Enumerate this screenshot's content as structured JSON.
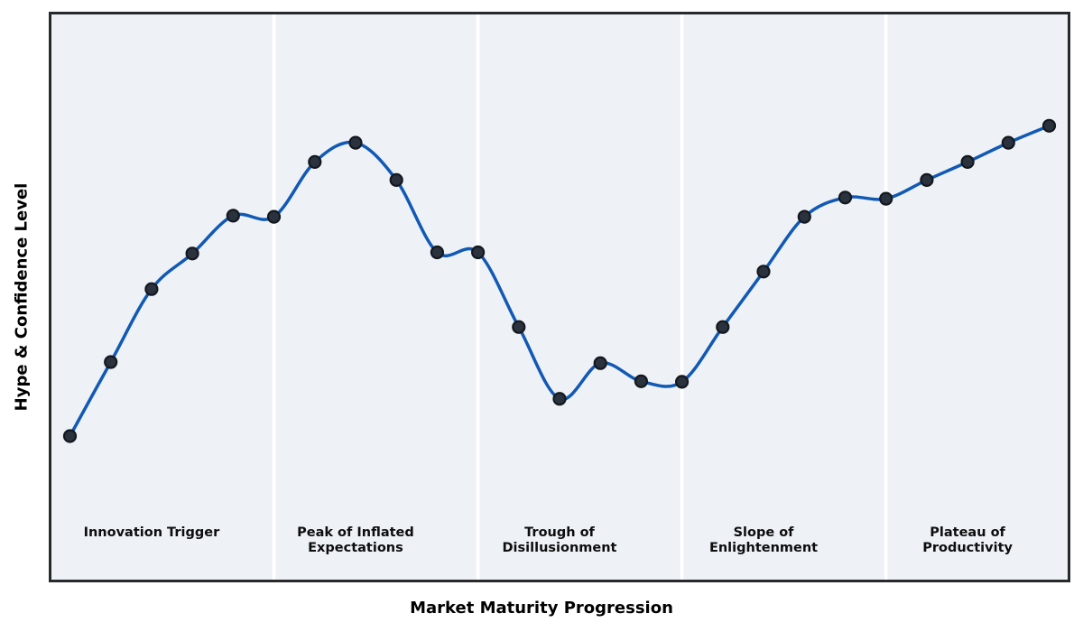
{
  "chart_data": {
    "type": "line",
    "title": "",
    "xlabel": "Market Maturity Progression",
    "ylabel": "Hype & Confidence Level",
    "x": [
      0,
      1,
      2,
      3,
      4,
      5,
      6,
      7,
      8,
      9,
      10,
      11,
      12,
      13,
      14,
      15,
      16,
      17,
      18,
      19,
      20,
      21,
      22,
      23,
      24
    ],
    "series": [
      {
        "name": "hype-confidence",
        "values": [
          25.4,
          38.5,
          51.4,
          57.7,
          64.4,
          64.2,
          73.9,
          77.3,
          70.7,
          57.9,
          57.9,
          44.7,
          32.0,
          38.3,
          35.1,
          35.0,
          44.7,
          54.5,
          64.2,
          67.6,
          67.4,
          70.7,
          73.9,
          77.3,
          80.3
        ],
        "smooth": true,
        "line_color": "#1159b4",
        "line_width": 3.5,
        "marker": "circle",
        "marker_fill": "#2a323e",
        "marker_edge": "#14181e"
      }
    ],
    "ylim": [
      0,
      100
    ],
    "x_ticks": "none",
    "y_ticks": "none",
    "grid": false,
    "legend": "none",
    "plot_background": "#eef2f7",
    "figure_background": "#ffffff",
    "spine_color": "#27292c",
    "divider_color": "#ffffff",
    "phase_boundaries": [
      5,
      10,
      15,
      20
    ],
    "phases": [
      {
        "lines": [
          "Innovation Trigger"
        ],
        "x": 2
      },
      {
        "lines": [
          "Peak of Inflated",
          "Expectations"
        ],
        "x": 7
      },
      {
        "lines": [
          "Trough of",
          "Disillusionment"
        ],
        "x": 12
      },
      {
        "lines": [
          "Slope of",
          "Enlightenment"
        ],
        "x": 17
      },
      {
        "lines": [
          "Plateau of",
          "Productivity"
        ],
        "x": 22
      }
    ]
  }
}
